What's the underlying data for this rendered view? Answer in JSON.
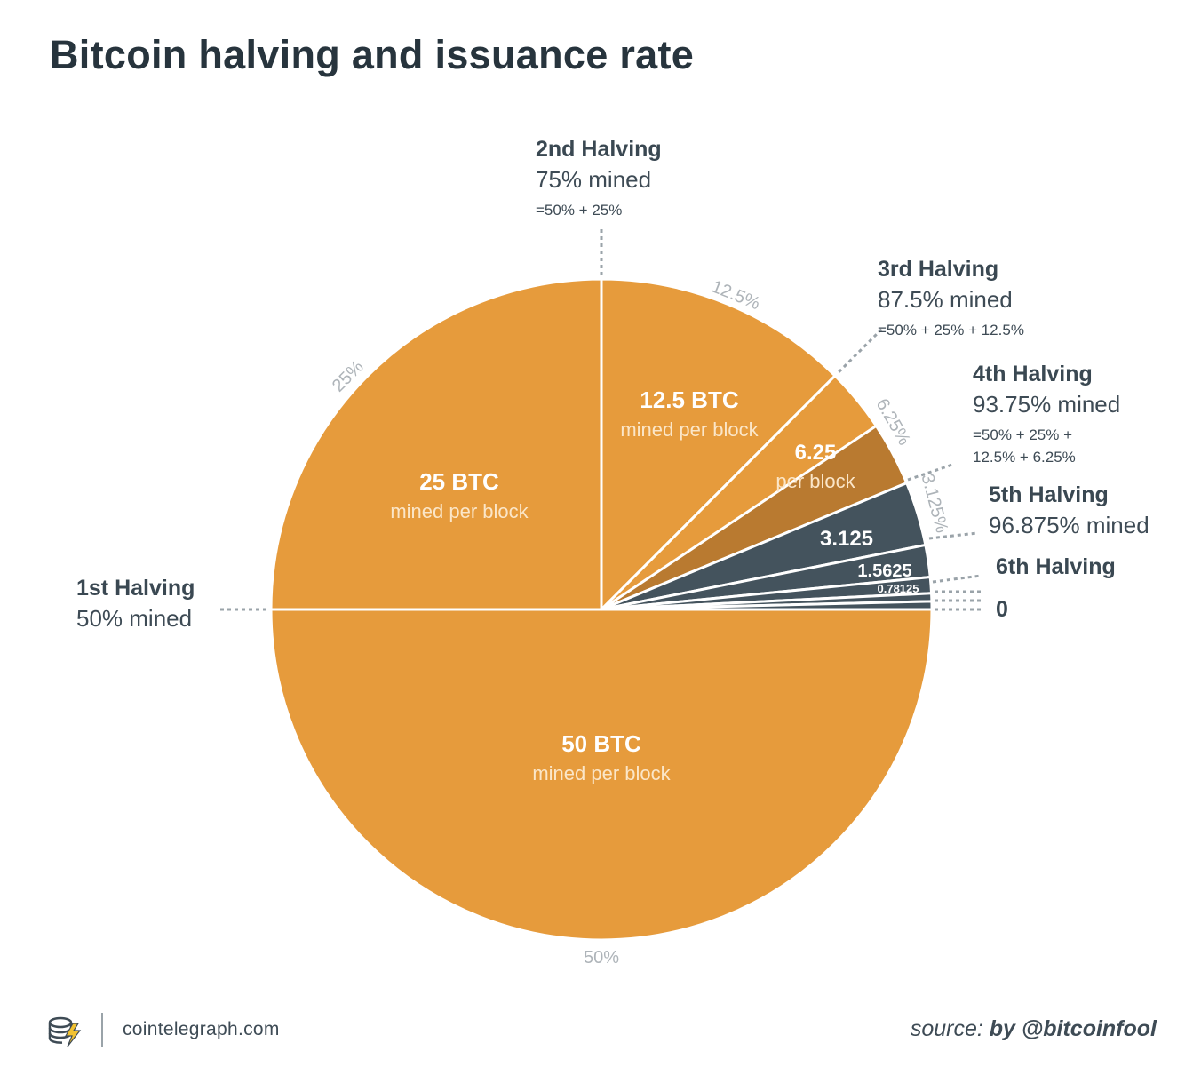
{
  "title": "Bitcoin halving and issuance rate",
  "footer": {
    "site": "cointelegraph.com",
    "source_prefix": "source:",
    "source_author": "by @bitcoinfool"
  },
  "colors": {
    "orange": "#e69b3c",
    "dark_orange": "#b97a30",
    "slate": "#44535d",
    "guide": "#9aa3a9",
    "pct_label": "#aeb4b9"
  },
  "annotations": {
    "h1": {
      "heading": "1st Halving",
      "mined": "50% mined"
    },
    "h2": {
      "heading": "2nd Halving",
      "mined": "75% mined",
      "formula": "=50% + 25%"
    },
    "h3": {
      "heading": "3rd Halving",
      "mined": "87.5% mined",
      "formula": "=50% + 25% + 12.5%"
    },
    "h4": {
      "heading": "4th Halving",
      "mined": "93.75% mined",
      "formula_1": "=50% + 25% +",
      "formula_2": "12.5% + 6.25%"
    },
    "h5": {
      "heading": "5th Halving",
      "mined": "96.875% mined"
    },
    "h6": {
      "heading": "6th Halving"
    },
    "zero": "0"
  },
  "chart_data": {
    "type": "pie",
    "title": "Bitcoin halving and issuance rate",
    "slices": [
      {
        "reward": "50 BTC",
        "sub": "mined per block",
        "percent": 50,
        "pct_label": "50%",
        "color": "#e69b3c"
      },
      {
        "reward": "25 BTC",
        "sub": "mined per block",
        "percent": 25,
        "pct_label": "25%",
        "color": "#e69b3c"
      },
      {
        "reward": "12.5 BTC",
        "sub": "mined per block",
        "percent": 12.5,
        "pct_label": "12.5%",
        "color": "#e69b3c"
      },
      {
        "reward": "6.25",
        "sub": "per block",
        "percent": 6.25,
        "pct_label": "6.25%",
        "color": "#e69b3c",
        "mined_portion_percent": 3.125,
        "mined_color": "#b97a30"
      },
      {
        "reward": "3.125",
        "sub": "",
        "percent": 3.125,
        "pct_label": "3.125%",
        "color": "#44535d"
      },
      {
        "reward": "1.5625",
        "sub": "",
        "percent": 1.5625,
        "pct_label": "",
        "color": "#44535d"
      },
      {
        "reward": "0.78125",
        "sub": "",
        "percent": 0.78125,
        "pct_label": "",
        "color": "#44535d"
      },
      {
        "reward": "",
        "sub": "",
        "percent": 0.390625,
        "pct_label": "",
        "color": "#44535d"
      },
      {
        "reward": "",
        "sub": "",
        "percent": 0.390625,
        "pct_label": "",
        "color": "#44535d"
      }
    ]
  }
}
